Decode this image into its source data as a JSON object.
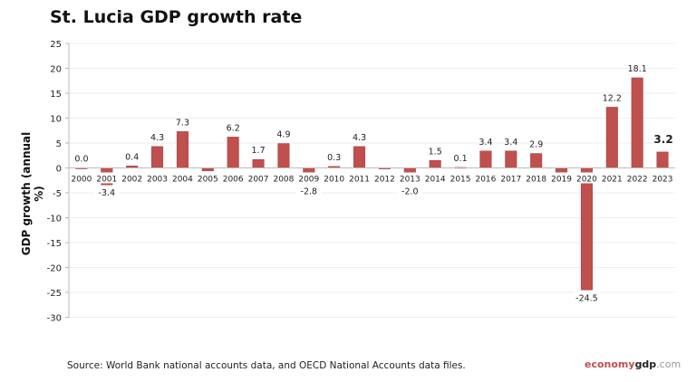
{
  "chart_data": {
    "type": "bar",
    "title": "St. Lucia GDP growth rate",
    "ylabel": "GDP growth (annual %)",
    "xlabel": "",
    "ylim": [
      -30,
      25
    ],
    "yticks": [
      25,
      20,
      15,
      10,
      5,
      0,
      -5,
      -10,
      -15,
      -20,
      -25,
      -30
    ],
    "grid": true,
    "legend": "none",
    "bar_color": "#c0504d",
    "categories": [
      "2000",
      "2001",
      "2002",
      "2003",
      "2004",
      "2005",
      "2006",
      "2007",
      "2008",
      "2009",
      "2010",
      "2011",
      "2012",
      "2013",
      "2014",
      "2015",
      "2016",
      "2017",
      "2018",
      "2019",
      "2020",
      "2021",
      "2022",
      "2023"
    ],
    "values": [
      0.0,
      -3.4,
      0.4,
      4.3,
      7.3,
      -0.6,
      6.2,
      1.7,
      4.9,
      -2.8,
      0.3,
      4.3,
      -0.2,
      -2.0,
      1.5,
      0.1,
      3.4,
      3.4,
      2.9,
      -1.0,
      -24.5,
      12.2,
      18.1,
      3.2
    ],
    "data_labels": [
      "0.0",
      "-3.4",
      "0.4",
      "4.3",
      "7.3",
      null,
      "6.2",
      "1.7",
      "4.9",
      "-2.8",
      "0.3",
      "4.3",
      null,
      "-2.0",
      "1.5",
      "0.1",
      "3.4",
      "3.4",
      "2.9",
      null,
      "-24.5",
      "12.2",
      "18.1",
      "3.2"
    ]
  },
  "footer": {
    "source": "Source:  World Bank national accounts data, and OECD National Accounts data files.",
    "brand_a": "economy",
    "brand_b": "gdp",
    "brand_c": ".com"
  }
}
